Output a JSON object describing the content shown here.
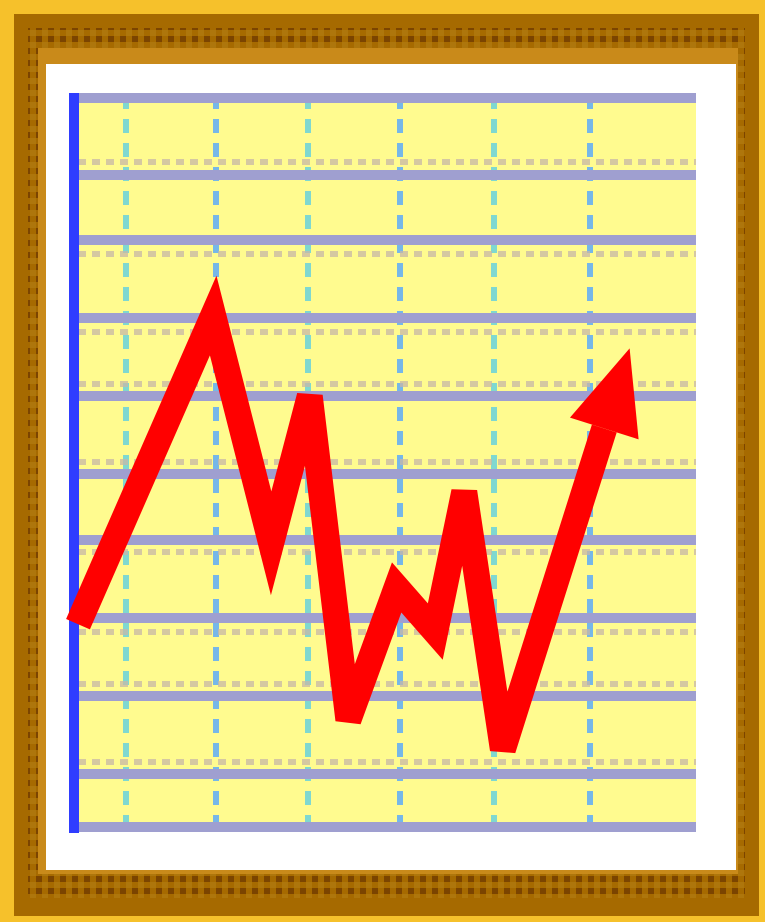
{
  "icon": {
    "name": "line-chart-icon",
    "frame_colors": {
      "outer_gold": "#F6C12B",
      "frame_brown": "#A66A00",
      "frame_dark": "#7A3E00",
      "inner_edge": "#C98A1A",
      "paper": "#FFFFFF"
    },
    "plot_colors": {
      "plot_bg": "#FFFB8F",
      "h_grid": "#9F9FD0",
      "v_grid": "#7FD8D0",
      "axis": "#2F3DFF",
      "line": "#FF0000"
    },
    "chart_data": {
      "type": "line",
      "title": "",
      "xlabel": "",
      "ylabel": "",
      "xlim": [
        0,
        6.4
      ],
      "ylim": [
        0,
        10
      ],
      "grid": true,
      "series": [
        {
          "x": [
            0,
            1.4,
            2.0,
            2.4,
            2.8,
            3.3,
            3.7,
            4.0,
            4.4,
            5.7
          ],
          "y": [
            2.8,
            7.0,
            3.9,
            5.9,
            1.5,
            3.3,
            2.7,
            4.6,
            1.1,
            6.5
          ]
        }
      ]
    }
  }
}
